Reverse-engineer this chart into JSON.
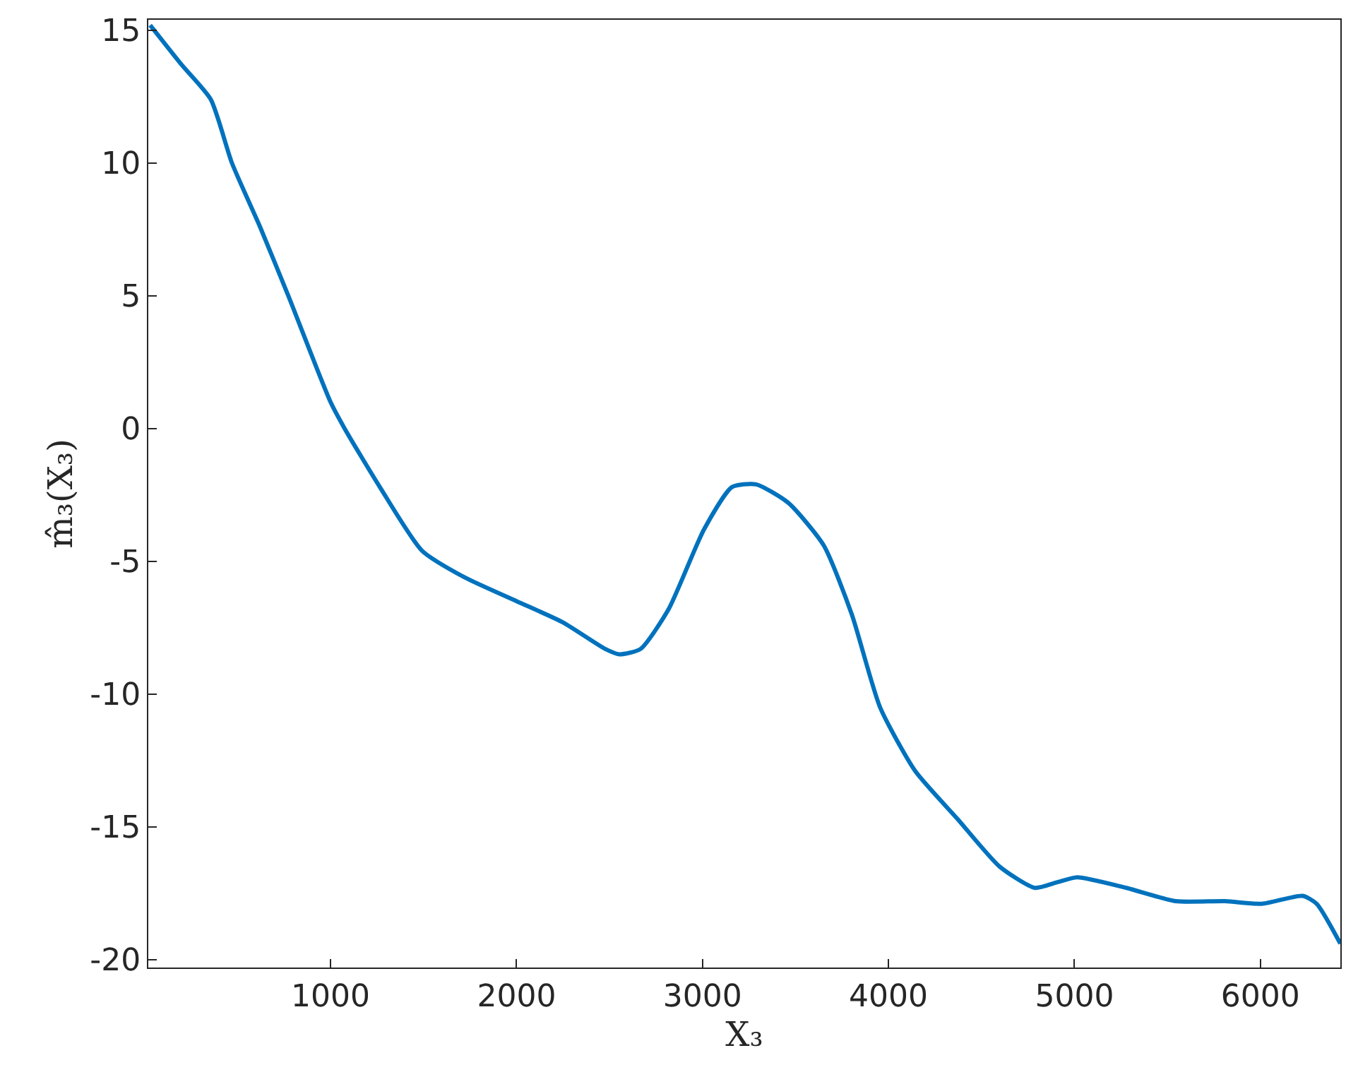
{
  "chart_data": {
    "type": "line",
    "xlabel": "X₃",
    "ylabel": "m̂₃(X₃)",
    "xlim": [
      20,
      6430
    ],
    "xticks": [
      1000,
      2000,
      3000,
      4000,
      5000,
      6000
    ],
    "ylim": [
      -20.3,
      15.4
    ],
    "yticks": [
      -20,
      -15,
      -10,
      -5,
      0,
      5,
      10,
      15
    ],
    "legend": false,
    "marker": "none",
    "line_style": "solid",
    "series": [
      {
        "color": "#0072bd",
        "x": [
          30,
          200,
          356,
          470,
          621,
          773,
          1000,
          1076,
          1265,
          1492,
          1720,
          2000,
          2250,
          2477,
          2553,
          2667,
          2818,
          3008,
          3159,
          3288,
          3462,
          3652,
          3803,
          3955,
          4144,
          4371,
          4598,
          4788,
          4902,
          5015,
          5280,
          5545,
          5811,
          6008,
          6227,
          6303,
          6430
        ],
        "values": [
          15.2,
          13.7,
          12.4,
          10,
          7.6,
          5.0,
          1.0,
          0,
          -2.2,
          -4.6,
          -5.6,
          -6.5,
          -7.3,
          -8.3,
          -8.5,
          -8.3,
          -6.8,
          -3.8,
          -2.2,
          -2.1,
          -2.8,
          -4.4,
          -7.0,
          -10.5,
          -12.9,
          -14.7,
          -16.5,
          -17.3,
          -17.1,
          -16.9,
          -17.3,
          -17.8,
          -17.8,
          -17.9,
          -17.6,
          -17.9,
          -19.4
        ]
      }
    ]
  }
}
